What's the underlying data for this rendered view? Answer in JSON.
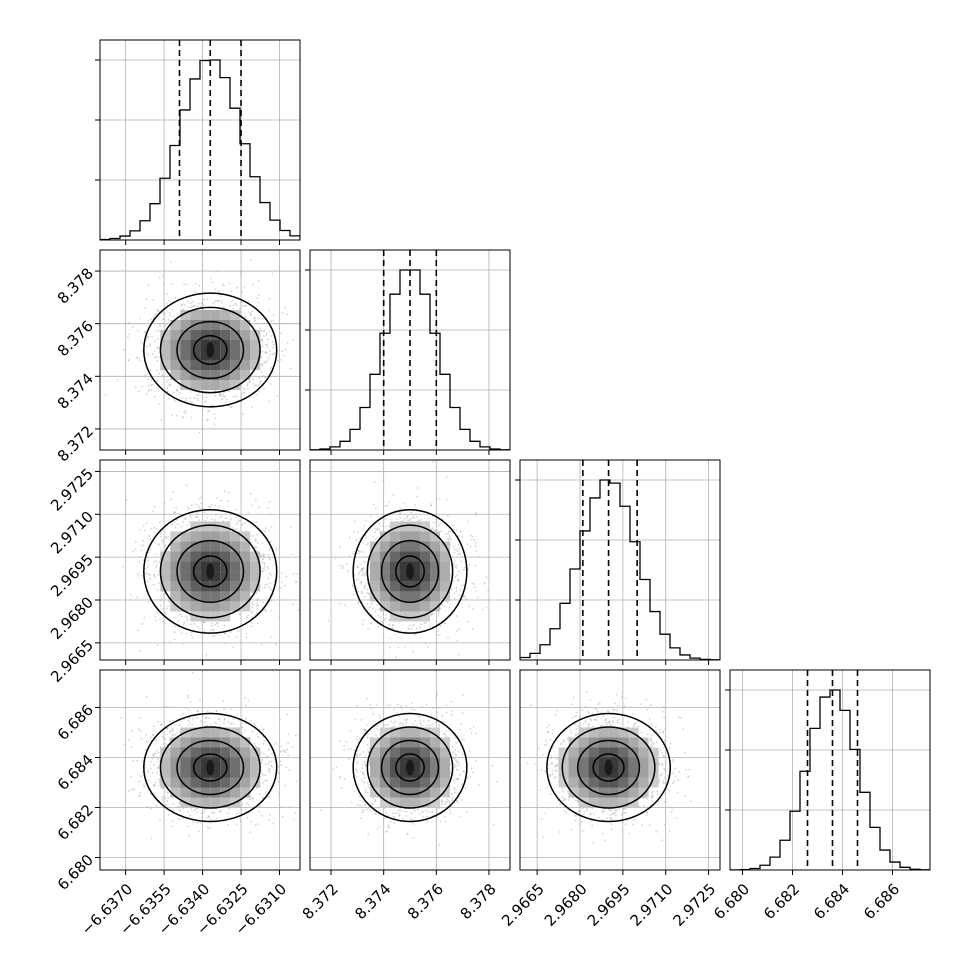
{
  "chart_data": {
    "type": "corner",
    "variables": [
      {
        "index": 0,
        "center": -6.6337,
        "sigma": 0.0012,
        "quantiles": [
          -6.6349,
          -6.6337,
          -6.6325
        ],
        "range": [
          -6.638,
          -6.6302
        ],
        "ticks": [
          -6.637,
          -6.6355,
          -6.634,
          -6.6325,
          -6.631
        ],
        "tick_labels": [
          "−6.6370",
          "−6.6355",
          "−6.6340",
          "−6.6325",
          "−6.6310"
        ]
      },
      {
        "index": 1,
        "center": 8.375,
        "sigma": 0.001,
        "quantiles": [
          8.374,
          8.375,
          8.376
        ],
        "range": [
          8.3712,
          8.3788
        ],
        "ticks": [
          8.372,
          8.374,
          8.376,
          8.378
        ],
        "tick_labels": [
          "8.372",
          "8.374",
          "8.376",
          "8.378"
        ]
      },
      {
        "index": 2,
        "center": 2.969,
        "sigma": 0.001,
        "quantiles": [
          2.9681,
          2.969,
          2.97
        ],
        "range": [
          2.9659,
          2.9729
        ],
        "ticks": [
          2.9665,
          2.968,
          2.9695,
          2.971,
          2.9725
        ],
        "tick_labels": [
          "2.9665",
          "2.9680",
          "2.9695",
          "2.9710",
          "2.9725"
        ]
      },
      {
        "index": 3,
        "center": 6.6836,
        "sigma": 0.001,
        "quantiles": [
          6.6826,
          6.6836,
          6.6846
        ],
        "range": [
          6.6795,
          6.6875
        ],
        "ticks": [
          6.68,
          6.682,
          6.684,
          6.686
        ],
        "tick_labels": [
          "6.680",
          "6.682",
          "6.684",
          "6.686"
        ]
      }
    ],
    "histogram_bins": 20,
    "quantile_levels": [
      0.16,
      0.5,
      0.84
    ],
    "contour_levels_sigma": [
      0.5,
      1.0,
      1.5,
      2.0
    ],
    "grid": true,
    "colors": {
      "hist": "#000000",
      "contour": "#000000",
      "points": "#b0b0b0",
      "grid": "#b0b0b0",
      "density_dark": "#1a1a1a"
    }
  }
}
